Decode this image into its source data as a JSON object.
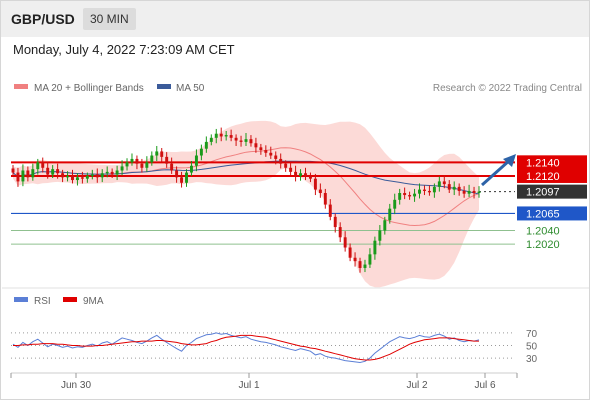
{
  "header": {
    "pair": "GBP/USD",
    "timeframe": "30 MIN",
    "datetime": "Monday, July 4, 2022 7:23:09 AM CET"
  },
  "legend": {
    "bb_label": "MA 20 + Bollinger Bands",
    "ma50_label": "MA 50",
    "source": "Research © 2022 Trading Central",
    "rsi_label": "RSI",
    "rsi_ma_label": "9MA"
  },
  "colors": {
    "up": "#1a9a1a",
    "down": "#d01010",
    "band_fill": "#fbd3d0",
    "ma20": "#f08080",
    "ma50": "#3b5b9a",
    "resistance": "#e00000",
    "support_blue": "#1f57c8",
    "support_green": "#2e8b2e",
    "current": "#333333",
    "arrow": "#2d63a8",
    "rsi": "#5b7fd6",
    "rsi_ma": "#e00000"
  },
  "chart_data": {
    "type": "candlestick",
    "x_ticks": [
      "Jun 30",
      "Jul 1",
      "Jul 2",
      "Jul 6"
    ],
    "ylim": [
      1.196,
      1.223
    ],
    "price_levels": [
      {
        "value": 1.214,
        "label": "1.2140",
        "kind": "resistance"
      },
      {
        "value": 1.212,
        "label": "1.2120",
        "kind": "resistance"
      },
      {
        "value": 1.2097,
        "label": "1.2097",
        "kind": "current"
      },
      {
        "value": 1.2065,
        "label": "1.2065",
        "kind": "pivot"
      },
      {
        "value": 1.204,
        "label": "1.2040",
        "kind": "support"
      },
      {
        "value": 1.202,
        "label": "1.2020",
        "kind": "support"
      }
    ],
    "close": [
      1.2125,
      1.2112,
      1.2128,
      1.2118,
      1.213,
      1.214,
      1.2132,
      1.2122,
      1.213,
      1.2124,
      1.2118,
      1.212,
      1.2114,
      1.2118,
      1.2116,
      1.212,
      1.2122,
      1.2118,
      1.2124,
      1.2126,
      1.2122,
      1.2128,
      1.2134,
      1.214,
      1.2145,
      1.2138,
      1.2132,
      1.214,
      1.215,
      1.2156,
      1.2148,
      1.2138,
      1.2128,
      1.2118,
      1.211,
      1.2125,
      1.2135,
      1.215,
      1.216,
      1.217,
      1.2176,
      1.2182,
      1.2178,
      1.218,
      1.2176,
      1.2172,
      1.217,
      1.2174,
      1.2168,
      1.2162,
      1.2158,
      1.2154,
      1.215,
      1.2145,
      1.2138,
      1.2132,
      1.2126,
      1.212,
      1.2124,
      1.212,
      1.2116,
      1.21,
      1.2095,
      1.2078,
      1.206,
      1.2045,
      1.203,
      1.2015,
      1.2,
      1.1995,
      1.1985,
      1.199,
      1.2005,
      1.2025,
      1.204,
      1.2055,
      1.2072,
      1.2085,
      1.2095,
      1.2092,
      1.209,
      1.2094,
      1.21,
      1.2098,
      1.2096,
      1.2104,
      1.2112,
      1.2108,
      1.21,
      1.2104,
      1.2098,
      1.2094,
      1.2098,
      1.2095,
      1.2097
    ],
    "rsi": {
      "levels": [
        70,
        50,
        30
      ],
      "rsi": [
        52,
        47,
        55,
        50,
        56,
        60,
        54,
        48,
        52,
        50,
        47,
        49,
        46,
        48,
        47,
        50,
        52,
        49,
        54,
        56,
        52,
        57,
        62,
        60,
        58,
        55,
        53,
        57,
        62,
        66,
        60,
        55,
        50,
        45,
        41,
        50,
        55,
        61,
        64,
        67,
        68,
        70,
        68,
        69,
        66,
        64,
        62,
        64,
        60,
        58,
        56,
        55,
        53,
        51,
        48,
        46,
        44,
        42,
        45,
        43,
        41,
        35,
        37,
        33,
        31,
        30,
        28,
        26,
        25,
        24,
        23,
        25,
        30,
        38,
        44,
        50,
        56,
        60,
        64,
        62,
        61,
        63,
        66,
        64,
        63,
        66,
        68,
        65,
        60,
        62,
        58,
        56,
        58,
        57,
        59
      ],
      "ma9": [
        50,
        50,
        51,
        51,
        52,
        52,
        53,
        53,
        53,
        52,
        52,
        51,
        50,
        50,
        49,
        49,
        49,
        50,
        50,
        51,
        52,
        53,
        54,
        55,
        56,
        56,
        57,
        57,
        57,
        58,
        58,
        57,
        56,
        55,
        53,
        52,
        51,
        51,
        52,
        53,
        56,
        58,
        61,
        63,
        64,
        65,
        66,
        66,
        66,
        65,
        64,
        63,
        61,
        59,
        57,
        55,
        53,
        51,
        49,
        48,
        46,
        45,
        43,
        41,
        39,
        37,
        35,
        33,
        31,
        29,
        28,
        27,
        27,
        28,
        30,
        33,
        36,
        40,
        44,
        48,
        52,
        55,
        57,
        59,
        60,
        61,
        62,
        62,
        62,
        61,
        60,
        59,
        58,
        57,
        57
      ]
    }
  }
}
